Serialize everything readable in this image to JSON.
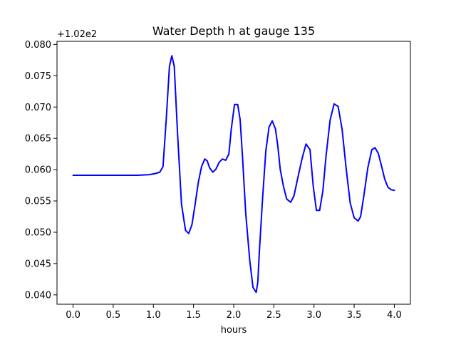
{
  "chart_data": {
    "type": "line",
    "title": "Water Depth h at gauge 135",
    "xlabel": "hours",
    "ylabel": "",
    "y_offset_label": "+1.02e2",
    "xlim": [
      -0.2,
      4.2
    ],
    "ylim": [
      0.0385,
      0.0805
    ],
    "x_ticks": [
      0.0,
      0.5,
      1.0,
      1.5,
      2.0,
      2.5,
      3.0,
      3.5,
      4.0
    ],
    "x_tick_labels": [
      "0.0",
      "0.5",
      "1.0",
      "1.5",
      "2.0",
      "2.5",
      "3.0",
      "3.5",
      "4.0"
    ],
    "y_ticks": [
      0.04,
      0.045,
      0.05,
      0.055,
      0.06,
      0.065,
      0.07,
      0.075,
      0.08
    ],
    "y_tick_labels": [
      "0.040",
      "0.045",
      "0.050",
      "0.055",
      "0.060",
      "0.065",
      "0.070",
      "0.075",
      "0.080"
    ],
    "grid": false,
    "series": [
      {
        "color": "#0000ff",
        "x": [
          0.0,
          0.2,
          0.4,
          0.6,
          0.8,
          0.95,
          1.03,
          1.08,
          1.12,
          1.16,
          1.2,
          1.23,
          1.26,
          1.3,
          1.35,
          1.4,
          1.44,
          1.48,
          1.52,
          1.56,
          1.6,
          1.64,
          1.67,
          1.7,
          1.74,
          1.78,
          1.82,
          1.86,
          1.9,
          1.94,
          1.97,
          2.01,
          2.05,
          2.08,
          2.11,
          2.15,
          2.2,
          2.24,
          2.28,
          2.3,
          2.32,
          2.36,
          2.4,
          2.44,
          2.48,
          2.52,
          2.55,
          2.58,
          2.62,
          2.66,
          2.71,
          2.75,
          2.8,
          2.85,
          2.9,
          2.95,
          2.99,
          3.03,
          3.07,
          3.11,
          3.15,
          3.2,
          3.25,
          3.3,
          3.35,
          3.4,
          3.45,
          3.5,
          3.55,
          3.58,
          3.62,
          3.67,
          3.72,
          3.76,
          3.8,
          3.84,
          3.88,
          3.92,
          3.96,
          4.0
        ],
        "y": [
          0.0591,
          0.0591,
          0.0591,
          0.0591,
          0.0591,
          0.0592,
          0.0594,
          0.0596,
          0.0605,
          0.068,
          0.0765,
          0.0782,
          0.0765,
          0.066,
          0.0545,
          0.0503,
          0.0498,
          0.0512,
          0.0545,
          0.058,
          0.0605,
          0.0617,
          0.0614,
          0.0603,
          0.0596,
          0.0601,
          0.0612,
          0.0617,
          0.0615,
          0.0625,
          0.0665,
          0.0704,
          0.0704,
          0.068,
          0.062,
          0.053,
          0.0455,
          0.0412,
          0.0404,
          0.042,
          0.047,
          0.0555,
          0.063,
          0.0668,
          0.0678,
          0.0665,
          0.0637,
          0.06,
          0.0573,
          0.0553,
          0.0548,
          0.0558,
          0.0588,
          0.0617,
          0.0641,
          0.0632,
          0.0574,
          0.0535,
          0.0535,
          0.0566,
          0.0622,
          0.0679,
          0.0705,
          0.0701,
          0.0664,
          0.0602,
          0.0547,
          0.0523,
          0.0518,
          0.0525,
          0.0558,
          0.0603,
          0.0632,
          0.0635,
          0.0626,
          0.0606,
          0.0585,
          0.0572,
          0.0568,
          0.0567
        ]
      }
    ]
  }
}
